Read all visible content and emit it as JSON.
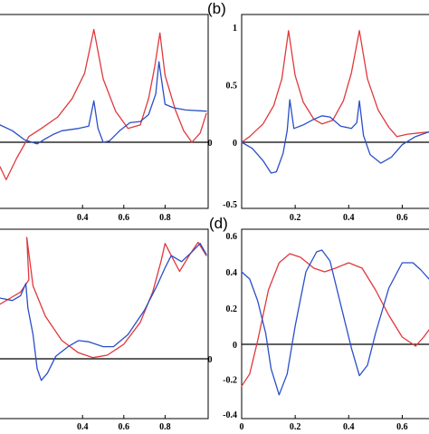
{
  "panel_labels": {
    "b": "(b)",
    "d": "(d)"
  },
  "colors": {
    "red": "#e0383c",
    "blue": "#2a4ec8",
    "axis": "#000000"
  },
  "chart_data": [
    {
      "id": "panel-a",
      "type": "line",
      "title": "",
      "xlabel": "",
      "ylabel": "",
      "xlim": [
        0.0,
        1.0
      ],
      "ylim": [
        -0.5,
        1.0
      ],
      "grid": false,
      "x_ticks": [
        {
          "value": 0.4,
          "label": "0.4"
        },
        {
          "value": 0.6,
          "label": "0.6"
        },
        {
          "value": 0.8,
          "label": "0.8"
        }
      ],
      "y_ticks": [
        {
          "value": 0,
          "label": "0"
        }
      ],
      "series": [
        {
          "color": "red",
          "points": [
            [
              0.0,
              -0.3
            ],
            [
              0.03,
              -0.46
            ],
            [
              0.08,
              -0.2
            ],
            [
              0.14,
              0.05
            ],
            [
              0.2,
              0.12
            ],
            [
              0.28,
              0.22
            ],
            [
              0.35,
              0.38
            ],
            [
              0.41,
              0.6
            ],
            [
              0.455,
              0.98
            ],
            [
              0.5,
              0.55
            ],
            [
              0.56,
              0.27
            ],
            [
              0.62,
              0.12
            ],
            [
              0.68,
              0.15
            ],
            [
              0.72,
              0.38
            ],
            [
              0.75,
              0.66
            ],
            [
              0.775,
              0.95
            ],
            [
              0.8,
              0.58
            ],
            [
              0.85,
              0.28
            ],
            [
              0.89,
              0.1
            ],
            [
              0.93,
              0.0
            ],
            [
              0.97,
              0.08
            ],
            [
              1.0,
              0.25
            ]
          ]
        },
        {
          "color": "blue",
          "points": [
            [
              0.0,
              0.15
            ],
            [
              0.06,
              0.1
            ],
            [
              0.12,
              0.02
            ],
            [
              0.18,
              -0.02
            ],
            [
              0.22,
              0.03
            ],
            [
              0.26,
              0.07
            ],
            [
              0.3,
              0.1
            ],
            [
              0.38,
              0.12
            ],
            [
              0.43,
              0.14
            ],
            [
              0.455,
              0.36
            ],
            [
              0.475,
              0.12
            ],
            [
              0.5,
              0.0
            ],
            [
              0.53,
              0.01
            ],
            [
              0.58,
              0.1
            ],
            [
              0.63,
              0.17
            ],
            [
              0.68,
              0.18
            ],
            [
              0.72,
              0.24
            ],
            [
              0.755,
              0.42
            ],
            [
              0.77,
              0.7
            ],
            [
              0.8,
              0.33
            ],
            [
              0.84,
              0.3
            ],
            [
              0.9,
              0.28
            ],
            [
              1.0,
              0.27
            ]
          ]
        }
      ]
    },
    {
      "id": "panel-b",
      "type": "line",
      "title": "",
      "xlabel": "",
      "ylabel": "",
      "xlim": [
        0.0,
        0.7
      ],
      "ylim": [
        -0.5,
        1.0
      ],
      "grid": false,
      "x_ticks": [
        {
          "value": 0.2,
          "label": "0.2"
        },
        {
          "value": 0.4,
          "label": "0.4"
        },
        {
          "value": 0.6,
          "label": "0.6"
        }
      ],
      "y_ticks": [
        {
          "value": 1,
          "label": "1"
        },
        {
          "value": 0.5,
          "label": "0.5"
        },
        {
          "value": 0,
          "label": "0"
        },
        {
          "value": -0.5,
          "label": "-0.5"
        }
      ],
      "series": [
        {
          "color": "red",
          "points": [
            [
              0.0,
              0.0
            ],
            [
              0.03,
              0.05
            ],
            [
              0.08,
              0.16
            ],
            [
              0.12,
              0.32
            ],
            [
              0.15,
              0.55
            ],
            [
              0.175,
              0.97
            ],
            [
              0.2,
              0.58
            ],
            [
              0.23,
              0.35
            ],
            [
              0.27,
              0.2
            ],
            [
              0.3,
              0.16
            ],
            [
              0.34,
              0.19
            ],
            [
              0.38,
              0.36
            ],
            [
              0.41,
              0.6
            ],
            [
              0.44,
              0.97
            ],
            [
              0.47,
              0.55
            ],
            [
              0.51,
              0.28
            ],
            [
              0.55,
              0.13
            ],
            [
              0.58,
              0.05
            ],
            [
              0.62,
              0.07
            ],
            [
              0.66,
              0.08
            ],
            [
              0.7,
              0.09
            ]
          ]
        },
        {
          "color": "blue",
          "points": [
            [
              0.0,
              0.0
            ],
            [
              0.04,
              -0.05
            ],
            [
              0.08,
              -0.15
            ],
            [
              0.11,
              -0.25
            ],
            [
              0.13,
              -0.24
            ],
            [
              0.155,
              -0.09
            ],
            [
              0.17,
              0.1
            ],
            [
              0.18,
              0.37
            ],
            [
              0.195,
              0.12
            ],
            [
              0.23,
              0.15
            ],
            [
              0.27,
              0.2
            ],
            [
              0.3,
              0.23
            ],
            [
              0.33,
              0.22
            ],
            [
              0.37,
              0.14
            ],
            [
              0.41,
              0.12
            ],
            [
              0.43,
              0.17
            ],
            [
              0.44,
              0.36
            ],
            [
              0.455,
              0.06
            ],
            [
              0.48,
              -0.1
            ],
            [
              0.52,
              -0.17
            ],
            [
              0.56,
              -0.12
            ],
            [
              0.6,
              -0.02
            ],
            [
              0.65,
              0.05
            ],
            [
              0.7,
              0.09
            ]
          ]
        }
      ]
    },
    {
      "id": "panel-c",
      "type": "line",
      "title": "",
      "xlabel": "",
      "ylabel": "",
      "xlim": [
        0.0,
        1.0
      ],
      "ylim": [
        -0.5,
        1.0
      ],
      "grid": false,
      "x_ticks": [
        {
          "value": 0.4,
          "label": "0.4"
        },
        {
          "value": 0.6,
          "label": "0.6"
        },
        {
          "value": 0.8,
          "label": "0.8"
        }
      ],
      "y_ticks": [
        {
          "value": 0,
          "label": "0"
        }
      ],
      "series": [
        {
          "color": "red",
          "points": [
            [
              0.0,
              0.45
            ],
            [
              0.05,
              0.5
            ],
            [
              0.1,
              0.55
            ],
            [
              0.14,
              0.65
            ],
            [
              0.13,
              1.0
            ],
            [
              0.16,
              0.6
            ],
            [
              0.22,
              0.35
            ],
            [
              0.3,
              0.15
            ],
            [
              0.38,
              0.05
            ],
            [
              0.45,
              0.01
            ],
            [
              0.52,
              0.03
            ],
            [
              0.6,
              0.12
            ],
            [
              0.68,
              0.3
            ],
            [
              0.74,
              0.55
            ],
            [
              0.78,
              0.8
            ],
            [
              0.8,
              0.95
            ],
            [
              0.83,
              0.85
            ],
            [
              0.87,
              0.72
            ],
            [
              0.92,
              0.86
            ],
            [
              0.96,
              0.96
            ],
            [
              1.0,
              0.85
            ]
          ]
        },
        {
          "color": "blue",
          "points": [
            [
              0.0,
              0.5
            ],
            [
              0.06,
              0.48
            ],
            [
              0.1,
              0.52
            ],
            [
              0.125,
              0.62
            ],
            [
              0.135,
              0.42
            ],
            [
              0.16,
              0.2
            ],
            [
              0.18,
              -0.08
            ],
            [
              0.2,
              -0.18
            ],
            [
              0.23,
              -0.12
            ],
            [
              0.27,
              0.02
            ],
            [
              0.33,
              0.1
            ],
            [
              0.38,
              0.15
            ],
            [
              0.43,
              0.14
            ],
            [
              0.5,
              0.1
            ],
            [
              0.55,
              0.1
            ],
            [
              0.62,
              0.2
            ],
            [
              0.7,
              0.4
            ],
            [
              0.76,
              0.6
            ],
            [
              0.8,
              0.75
            ],
            [
              0.83,
              0.85
            ],
            [
              0.88,
              0.8
            ],
            [
              0.93,
              0.88
            ],
            [
              0.97,
              0.95
            ],
            [
              1.0,
              0.86
            ]
          ]
        }
      ]
    },
    {
      "id": "panel-d",
      "type": "line",
      "title": "",
      "xlabel": "",
      "ylabel": "",
      "xlim": [
        0.0,
        0.7
      ],
      "ylim": [
        -0.4,
        0.6
      ],
      "grid": false,
      "x_ticks": [
        {
          "value": 0,
          "label": "0"
        },
        {
          "value": 0.2,
          "label": "0.2"
        },
        {
          "value": 0.4,
          "label": "0.4"
        },
        {
          "value": 0.6,
          "label": "0.6"
        }
      ],
      "y_ticks": [
        {
          "value": 0.6,
          "label": "0.6"
        },
        {
          "value": 0.4,
          "label": "0.4"
        },
        {
          "value": 0.2,
          "label": "0.2"
        },
        {
          "value": 0,
          "label": "0"
        },
        {
          "value": -0.2,
          "label": "-0.2"
        },
        {
          "value": -0.4,
          "label": "-0.4"
        }
      ],
      "series": [
        {
          "color": "red",
          "points": [
            [
              0.0,
              -0.24
            ],
            [
              0.03,
              -0.17
            ],
            [
              0.06,
              0.02
            ],
            [
              0.1,
              0.3
            ],
            [
              0.14,
              0.45
            ],
            [
              0.18,
              0.5
            ],
            [
              0.22,
              0.48
            ],
            [
              0.27,
              0.42
            ],
            [
              0.31,
              0.4
            ],
            [
              0.35,
              0.42
            ],
            [
              0.4,
              0.45
            ],
            [
              0.45,
              0.42
            ],
            [
              0.5,
              0.3
            ],
            [
              0.55,
              0.16
            ],
            [
              0.6,
              0.04
            ],
            [
              0.65,
              -0.01
            ],
            [
              0.68,
              0.04
            ],
            [
              0.7,
              0.08
            ]
          ]
        },
        {
          "color": "blue",
          "points": [
            [
              0.0,
              0.4
            ],
            [
              0.03,
              0.36
            ],
            [
              0.06,
              0.24
            ],
            [
              0.09,
              0.06
            ],
            [
              0.11,
              -0.14
            ],
            [
              0.14,
              -0.29
            ],
            [
              0.17,
              -0.17
            ],
            [
              0.2,
              0.1
            ],
            [
              0.24,
              0.4
            ],
            [
              0.28,
              0.51
            ],
            [
              0.3,
              0.52
            ],
            [
              0.33,
              0.46
            ],
            [
              0.37,
              0.22
            ],
            [
              0.41,
              -0.02
            ],
            [
              0.44,
              -0.18
            ],
            [
              0.47,
              -0.12
            ],
            [
              0.5,
              0.06
            ],
            [
              0.55,
              0.31
            ],
            [
              0.6,
              0.45
            ],
            [
              0.64,
              0.45
            ],
            [
              0.67,
              0.41
            ],
            [
              0.7,
              0.36
            ]
          ]
        }
      ]
    }
  ]
}
